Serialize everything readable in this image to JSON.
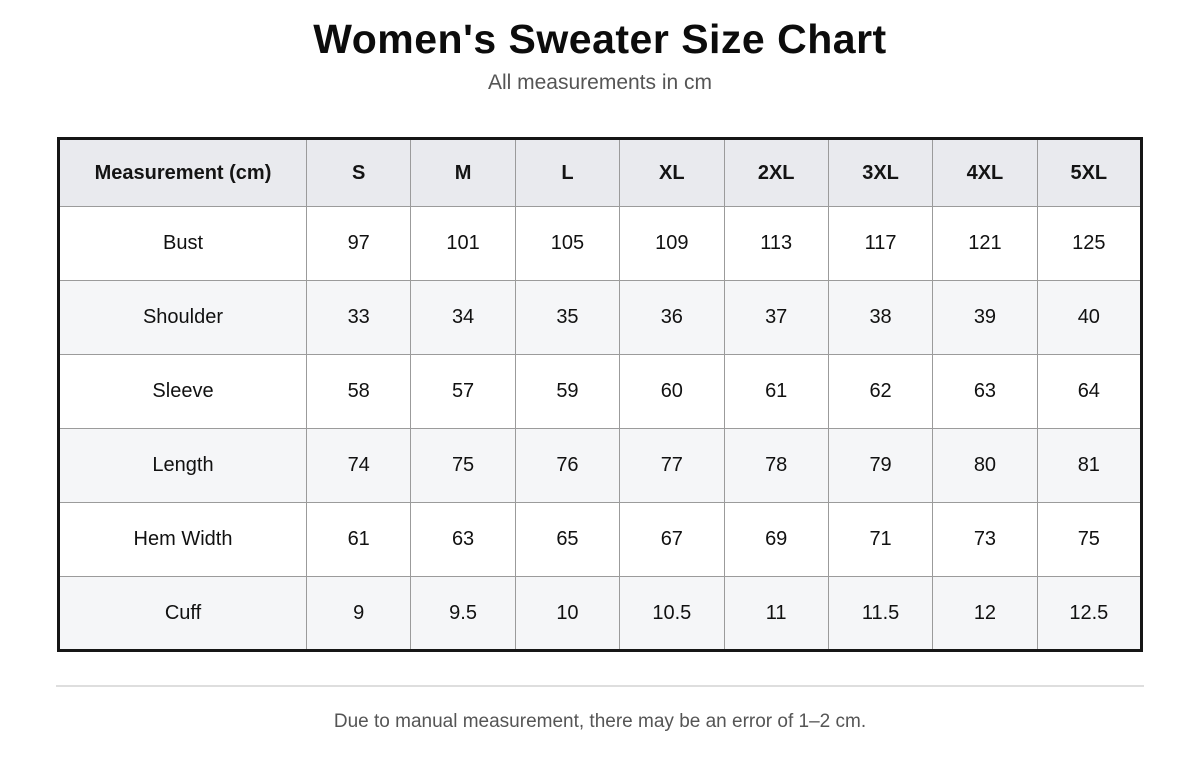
{
  "page": {
    "title": "Women's Sweater Size Chart",
    "subtitle": "All measurements in cm",
    "footnote": "Due to manual measurement, there may be an error of 1–2 cm."
  },
  "table": {
    "header": [
      "Measurement (cm)",
      "S",
      "M",
      "L",
      "XL",
      "2XL",
      "3XL",
      "4XL",
      "5XL"
    ],
    "rows": [
      {
        "label": "Bust",
        "values": [
          97,
          101,
          105,
          109,
          113,
          117,
          121,
          125
        ]
      },
      {
        "label": "Shoulder",
        "values": [
          33,
          34,
          35,
          36,
          37,
          38,
          39,
          40
        ]
      },
      {
        "label": "Sleeve",
        "values": [
          58,
          57,
          59,
          60,
          61,
          62,
          63,
          64
        ]
      },
      {
        "label": "Length",
        "values": [
          74,
          75,
          76,
          77,
          78,
          79,
          80,
          81
        ]
      },
      {
        "label": "Hem Width",
        "values": [
          61,
          63,
          65,
          67,
          69,
          71,
          73,
          75
        ]
      },
      {
        "label": "Cuff",
        "values": [
          9,
          9.5,
          10,
          10.5,
          11,
          11.5,
          12,
          12.5
        ]
      }
    ]
  },
  "chart_data": {
    "type": "table",
    "title": "Women's Sweater Size Chart",
    "subtitle": "All measurements in cm",
    "columns": [
      "Measurement (cm)",
      "S",
      "M",
      "L",
      "XL",
      "2XL",
      "3XL",
      "4XL",
      "5XL"
    ],
    "rows": [
      [
        "Bust",
        97,
        101,
        105,
        109,
        113,
        117,
        121,
        125
      ],
      [
        "Shoulder",
        33,
        34,
        35,
        36,
        37,
        38,
        39,
        40
      ],
      [
        "Sleeve",
        58,
        57,
        59,
        60,
        61,
        62,
        63,
        64
      ],
      [
        "Length",
        74,
        75,
        76,
        77,
        78,
        79,
        80,
        81
      ],
      [
        "Hem Width",
        61,
        63,
        65,
        67,
        69,
        71,
        73,
        75
      ],
      [
        "Cuff",
        9,
        9.5,
        10,
        10.5,
        11,
        11.5,
        12,
        12.5
      ]
    ],
    "footnote": "Due to manual measurement, there may be an error of 1–2 cm."
  },
  "colors": {
    "header_bg": "#e9eaee",
    "stripe_bg": "#f5f6f8",
    "border_inner": "#9b9b9b",
    "border_outer": "#161616",
    "text": "#111111",
    "muted_text": "#555555",
    "divider": "#dedede"
  }
}
